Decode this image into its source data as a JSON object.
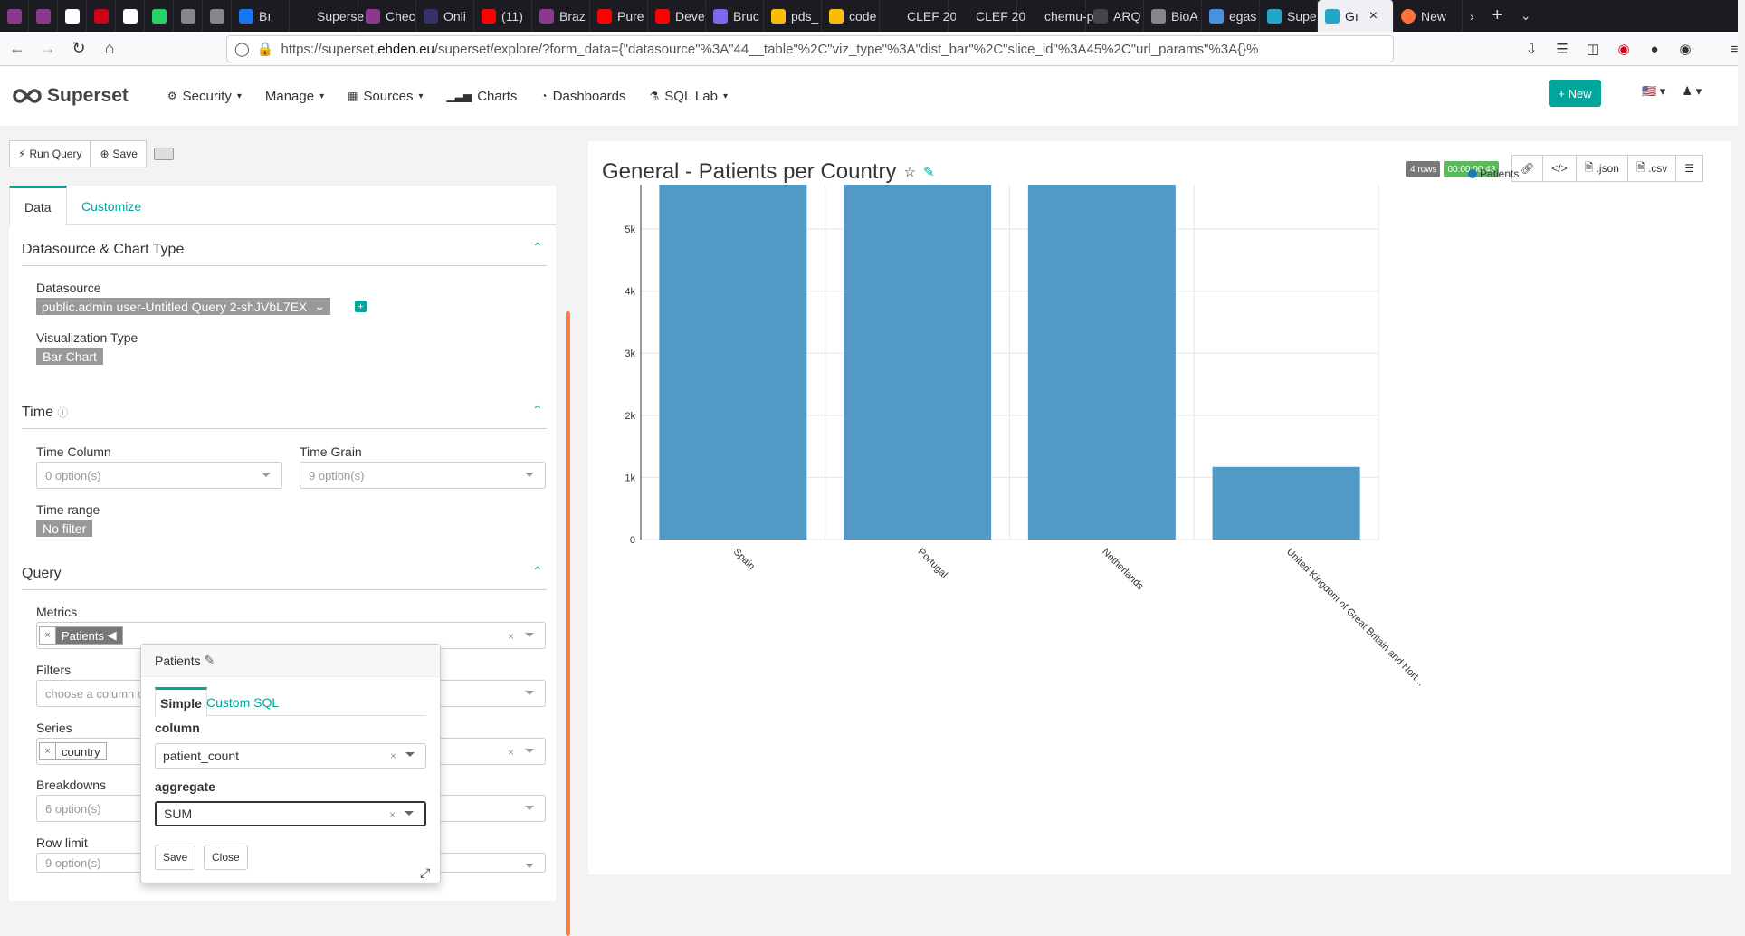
{
  "browser": {
    "tabs": [
      {
        "label": "",
        "color": "#8b3a8b"
      },
      {
        "label": "",
        "color": "#8b3a8b"
      },
      {
        "label": "",
        "color": "#ffffff"
      },
      {
        "label": "",
        "color": "#d0021b"
      },
      {
        "label": "",
        "color": "#ffffff"
      },
      {
        "label": "",
        "color": "#25d366"
      },
      {
        "label": "",
        "color": "#888888"
      },
      {
        "label": "",
        "color": "#888888"
      },
      {
        "label": "Bı",
        "color": "#1877f2"
      },
      {
        "label": "Superse",
        "color": "#1c1b22"
      },
      {
        "label": "Chec",
        "color": "#8b3a8b"
      },
      {
        "label": "Onli",
        "color": "#333366"
      },
      {
        "label": "(11)",
        "color": "#ff0000"
      },
      {
        "label": "Braz",
        "color": "#8b3a8b"
      },
      {
        "label": "Pure",
        "color": "#ff0000"
      },
      {
        "label": "Deve",
        "color": "#ff0000"
      },
      {
        "label": "Bruc",
        "color": "#7b68ee"
      },
      {
        "label": "pds_",
        "color": "#fbbc04"
      },
      {
        "label": "code",
        "color": "#fbbc04"
      },
      {
        "label": "CLEF 20",
        "color": "#1c1b22"
      },
      {
        "label": "CLEF 20",
        "color": "#1c1b22"
      },
      {
        "label": "chemu-p",
        "color": "#1c1b22"
      },
      {
        "label": "ARQ",
        "color": "#444444"
      },
      {
        "label": "BioA",
        "color": "#888888"
      },
      {
        "label": "egas",
        "color": "#4a90e2"
      },
      {
        "label": "Supe",
        "color": "#20a7c9"
      }
    ],
    "active_tab": "Gı",
    "after_tab": "New",
    "url_prefix": "https://superset.",
    "url_domain": "ehden.eu",
    "url_rest": "/superset/explore/?form_data={\"datasource\"%3A\"44__table\"%2C\"viz_type\"%3A\"dist_bar\"%2C\"slice_id\"%3A45%2C\"url_params\"%3A{}%"
  },
  "header": {
    "brand": "Superset",
    "menu": [
      {
        "label": "Security",
        "icon": "gear-icon",
        "caret": true
      },
      {
        "label": "Manage",
        "icon": "",
        "caret": true
      },
      {
        "label": "Sources",
        "icon": "table-icon",
        "caret": true
      },
      {
        "label": "Charts",
        "icon": "bar-chart-icon",
        "caret": false
      },
      {
        "label": "Dashboards",
        "icon": "dashboard-icon",
        "caret": false
      },
      {
        "label": "SQL Lab",
        "icon": "flask-icon",
        "caret": true
      }
    ],
    "new_button": "+ New"
  },
  "toolbar": {
    "run_query": "Run Query",
    "save": "Save"
  },
  "control_panel": {
    "tabs": [
      "Data",
      "Customize"
    ],
    "datasource_section": "Datasource & Chart Type",
    "datasource_label": "Datasource",
    "datasource_value": "public.admin user-Untitled Query 2-shJVbL7EX",
    "viz_type_label": "Visualization Type",
    "viz_type_value": "Bar Chart",
    "time_section": "Time",
    "time_column_label": "Time Column",
    "time_column_placeholder": "0 option(s)",
    "time_grain_label": "Time Grain",
    "time_grain_placeholder": "9 option(s)",
    "time_range_label": "Time range",
    "time_range_value": "No filter",
    "query_section": "Query",
    "metrics_label": "Metrics",
    "metric_tag": "Patients",
    "filters_label": "Filters",
    "filters_placeholder": "choose a column or metric",
    "series_label": "Series",
    "series_tag": "country",
    "breakdowns_label": "Breakdowns",
    "breakdowns_placeholder": "6 option(s)",
    "row_limit_label": "Row limit",
    "row_limit_placeholder": "9 option(s)"
  },
  "metric_popover": {
    "title": "Patients",
    "tabs": [
      "Simple",
      "Custom SQL"
    ],
    "column_label": "column",
    "column_value": "patient_count",
    "aggregate_label": "aggregate",
    "aggregate_value": "SUM",
    "save": "Save",
    "close": "Close"
  },
  "chart_header": {
    "title": "General - Patients per Country",
    "rows_badge": "4 rows",
    "time_badge": "00:00:00.43",
    "json_btn": ".json",
    "csv_btn": ".csv",
    "rows_color": "#777777",
    "time_color": "#5cb85c"
  },
  "chart_data": {
    "type": "bar",
    "categories": [
      "Spain",
      "Portugal",
      "Netherlands",
      "United Kingdom of Great Britain and Nort..."
    ],
    "series": [
      {
        "name": "Patients",
        "values": [
          5715,
          5715,
          5715,
          1170
        ]
      }
    ],
    "ylim": [
      0,
      5715
    ],
    "yticks": [
      0,
      1000,
      2000,
      3000,
      4000,
      5000
    ],
    "ytick_labels": [
      "0",
      "1k",
      "2k",
      "3k",
      "4k",
      "5k"
    ],
    "legend": "top-right",
    "grid": true,
    "bar_color": "#5399c6"
  }
}
